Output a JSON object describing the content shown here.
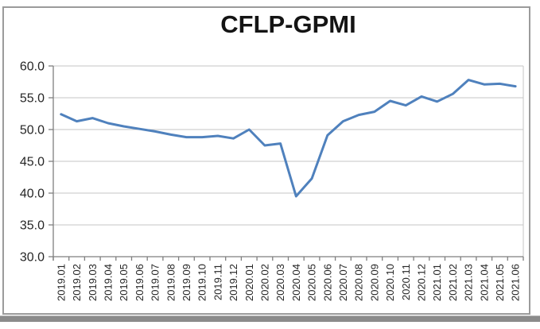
{
  "window": {
    "background": "#ffffff",
    "frame_border_color": "#9b9b9b",
    "bottom_bar_color": "#8b8b8b"
  },
  "chart_data": {
    "type": "line",
    "title": "CFLP-GPMI",
    "categories": [
      "2019.01",
      "2019.02",
      "2019.03",
      "2019.04",
      "2019.05",
      "2019.06",
      "2019.07",
      "2019.08",
      "2019.09",
      "2019.10",
      "2019.11",
      "2019.12",
      "2020.01",
      "2020.02",
      "2020.03",
      "2020.04",
      "2020.05",
      "2020.06",
      "2020.07",
      "2020.08",
      "2020.09",
      "2020.10",
      "2020.11",
      "2020.12",
      "2021.01",
      "2021.02",
      "2021.03",
      "2021.04",
      "2021.05",
      "2021.06"
    ],
    "series": [
      {
        "name": "CFLP-GPMI",
        "values": [
          52.4,
          51.3,
          51.8,
          51.0,
          50.5,
          50.1,
          49.7,
          49.2,
          48.8,
          48.8,
          49.0,
          48.6,
          50.0,
          47.5,
          47.8,
          39.5,
          42.3,
          49.1,
          51.3,
          52.3,
          52.8,
          54.5,
          53.8,
          55.2,
          54.4,
          55.6,
          57.8,
          57.1,
          57.2,
          56.8
        ]
      }
    ],
    "xlabel": "",
    "ylabel": "",
    "ylim": [
      30,
      60
    ],
    "ytick_interval": 5,
    "ytick_labels": [
      "30.0",
      "35.0",
      "40.0",
      "45.0",
      "50.0",
      "55.0",
      "60.0"
    ],
    "xtick_rotation_deg": 90,
    "grid": true,
    "legend": "none",
    "line_color": "#4f81bd",
    "axis_color": "#7f7f7f",
    "grid_color": "#c6c6c6",
    "label_color": "#262626"
  }
}
